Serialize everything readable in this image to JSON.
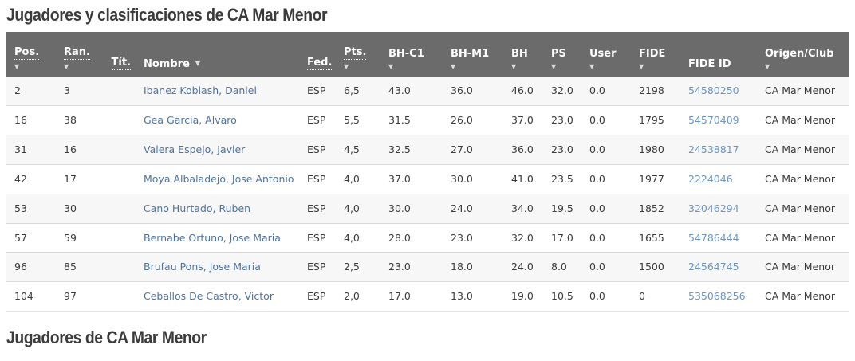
{
  "titles": {
    "top": "Jugadores y clasificaciones de CA Mar Menor",
    "bottom": "Jugadores de CA Mar Menor"
  },
  "colors": {
    "header_bg": "#6b6b6b",
    "header_text": "#ffffff",
    "title_text": "#3b3b3b",
    "row_alt_bg": "#f7f7f7",
    "row_border": "#d9d9d9",
    "name_link": "#4e73a0",
    "fide_id_link": "#6e95bf",
    "cell_text": "#3a3a3a"
  },
  "icons": {
    "sort_arrow": "▼"
  },
  "table": {
    "columns": [
      {
        "key": "pos",
        "label": "Pos.",
        "sort_arrow": "below",
        "dotted": true,
        "header_align": "left"
      },
      {
        "key": "ran",
        "label": "Ran.",
        "sort_arrow": "below",
        "dotted": true,
        "header_align": "left"
      },
      {
        "key": "tit",
        "label": "Tít.",
        "sort_arrow": "none",
        "dotted": true,
        "header_align": "right"
      },
      {
        "key": "nombre",
        "label": "Nombre",
        "sort_arrow": "inline",
        "dotted": false,
        "header_align": "left"
      },
      {
        "key": "fed",
        "label": "Fed.",
        "sort_arrow": "none",
        "dotted": true,
        "header_align": "left"
      },
      {
        "key": "pts",
        "label": "Pts.",
        "sort_arrow": "below",
        "dotted": true,
        "header_align": "left"
      },
      {
        "key": "bh_c1",
        "label": "BH-C1",
        "sort_arrow": "below",
        "dotted": false,
        "header_align": "left"
      },
      {
        "key": "bh_m1",
        "label": "BH-M1",
        "sort_arrow": "below",
        "dotted": false,
        "header_align": "left"
      },
      {
        "key": "bh",
        "label": "BH",
        "sort_arrow": "below",
        "dotted": false,
        "header_align": "left"
      },
      {
        "key": "ps",
        "label": "PS",
        "sort_arrow": "below",
        "dotted": false,
        "header_align": "left"
      },
      {
        "key": "user",
        "label": "User",
        "sort_arrow": "below",
        "dotted": false,
        "header_align": "left"
      },
      {
        "key": "fide",
        "label": "FIDE",
        "sort_arrow": "below",
        "dotted": false,
        "header_align": "left"
      },
      {
        "key": "fide_id",
        "label": "FIDE ID",
        "sort_arrow": "none",
        "dotted": false,
        "header_align": "left"
      },
      {
        "key": "origen",
        "label": "Origen/Club",
        "sort_arrow": "below",
        "dotted": false,
        "header_align": "left"
      }
    ],
    "rows": [
      {
        "pos": "2",
        "ran": "3",
        "tit": "",
        "nombre": "Ibanez Koblash, Daniel",
        "fed": "ESP",
        "pts": "6,5",
        "bh_c1": "43.0",
        "bh_m1": "36.0",
        "bh": "46.0",
        "ps": "32.0",
        "user": "0.0",
        "fide": "2198",
        "fide_id": "54580250",
        "origen": "CA Mar Menor"
      },
      {
        "pos": "16",
        "ran": "38",
        "tit": "",
        "nombre": "Gea Garcia, Alvaro",
        "fed": "ESP",
        "pts": "5,5",
        "bh_c1": "31.5",
        "bh_m1": "26.0",
        "bh": "37.0",
        "ps": "23.0",
        "user": "0.0",
        "fide": "1795",
        "fide_id": "54570409",
        "origen": "CA Mar Menor"
      },
      {
        "pos": "31",
        "ran": "16",
        "tit": "",
        "nombre": "Valera Espejo, Javier",
        "fed": "ESP",
        "pts": "4,5",
        "bh_c1": "32.5",
        "bh_m1": "27.0",
        "bh": "36.0",
        "ps": "23.0",
        "user": "0.0",
        "fide": "1980",
        "fide_id": "24538817",
        "origen": "CA Mar Menor"
      },
      {
        "pos": "42",
        "ran": "17",
        "tit": "",
        "nombre": "Moya Albaladejo, Jose Antonio",
        "fed": "ESP",
        "pts": "4,0",
        "bh_c1": "37.0",
        "bh_m1": "30.0",
        "bh": "41.0",
        "ps": "23.5",
        "user": "0.0",
        "fide": "1977",
        "fide_id": "2224046",
        "origen": "CA Mar Menor"
      },
      {
        "pos": "53",
        "ran": "30",
        "tit": "",
        "nombre": "Cano Hurtado, Ruben",
        "fed": "ESP",
        "pts": "4,0",
        "bh_c1": "30.0",
        "bh_m1": "24.0",
        "bh": "34.0",
        "ps": "19.5",
        "user": "0.0",
        "fide": "1852",
        "fide_id": "32046294",
        "origen": "CA Mar Menor"
      },
      {
        "pos": "57",
        "ran": "59",
        "tit": "",
        "nombre": "Bernabe Ortuno, Jose Maria",
        "fed": "ESP",
        "pts": "4,0",
        "bh_c1": "28.0",
        "bh_m1": "23.0",
        "bh": "32.0",
        "ps": "17.0",
        "user": "0.0",
        "fide": "1655",
        "fide_id": "54786444",
        "origen": "CA Mar Menor"
      },
      {
        "pos": "96",
        "ran": "85",
        "tit": "",
        "nombre": "Brufau Pons, Jose Maria",
        "fed": "ESP",
        "pts": "2,5",
        "bh_c1": "23.0",
        "bh_m1": "18.0",
        "bh": "24.0",
        "ps": "8.0",
        "user": "0.0",
        "fide": "1500",
        "fide_id": "24564745",
        "origen": "CA Mar Menor"
      },
      {
        "pos": "104",
        "ran": "97",
        "tit": "",
        "nombre": "Ceballos De Castro, Victor",
        "fed": "ESP",
        "pts": "2,0",
        "bh_c1": "17.0",
        "bh_m1": "13.0",
        "bh": "19.0",
        "ps": "10.5",
        "user": "0.0",
        "fide": "0",
        "fide_id": "535068256",
        "origen": "CA Mar Menor"
      }
    ]
  }
}
